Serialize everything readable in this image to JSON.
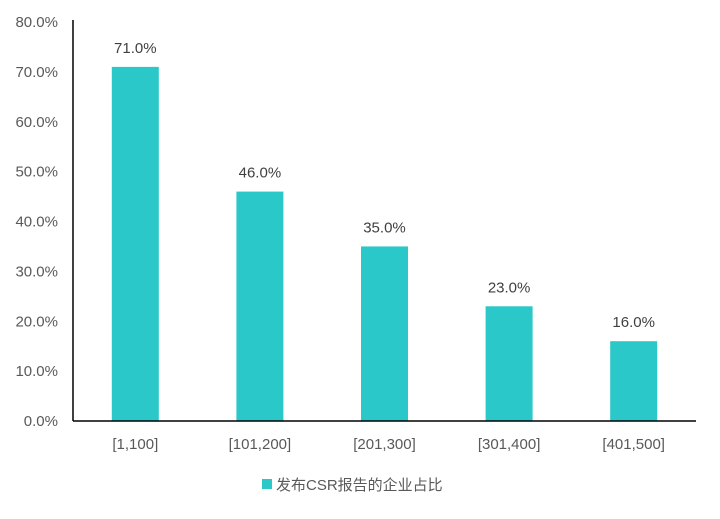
{
  "chart_data": {
    "type": "bar",
    "categories": [
      "[1,100]",
      "[101,200]",
      "[201,300]",
      "[301,400]",
      "[401,500]"
    ],
    "series": [
      {
        "name": "发布CSR报告的企业占比",
        "values": [
          71.0,
          46.0,
          35.0,
          23.0,
          16.0
        ],
        "color": "#2BC8C9"
      }
    ],
    "value_labels": [
      "71.0%",
      "46.0%",
      "35.0%",
      "23.0%",
      "16.0%"
    ],
    "ylim": [
      0,
      80
    ],
    "y_ticks": [
      0,
      10,
      20,
      30,
      40,
      50,
      60,
      70,
      80
    ],
    "y_tick_labels": [
      "0.0%",
      "10.0%",
      "20.0%",
      "30.0%",
      "40.0%",
      "50.0%",
      "60.0%",
      "70.0%",
      "80.0%"
    ],
    "grid": false,
    "legend_position": "bottom-center",
    "colors": {
      "bar": "#2BC8C9",
      "axis": "#000000",
      "text": "#595959"
    }
  }
}
